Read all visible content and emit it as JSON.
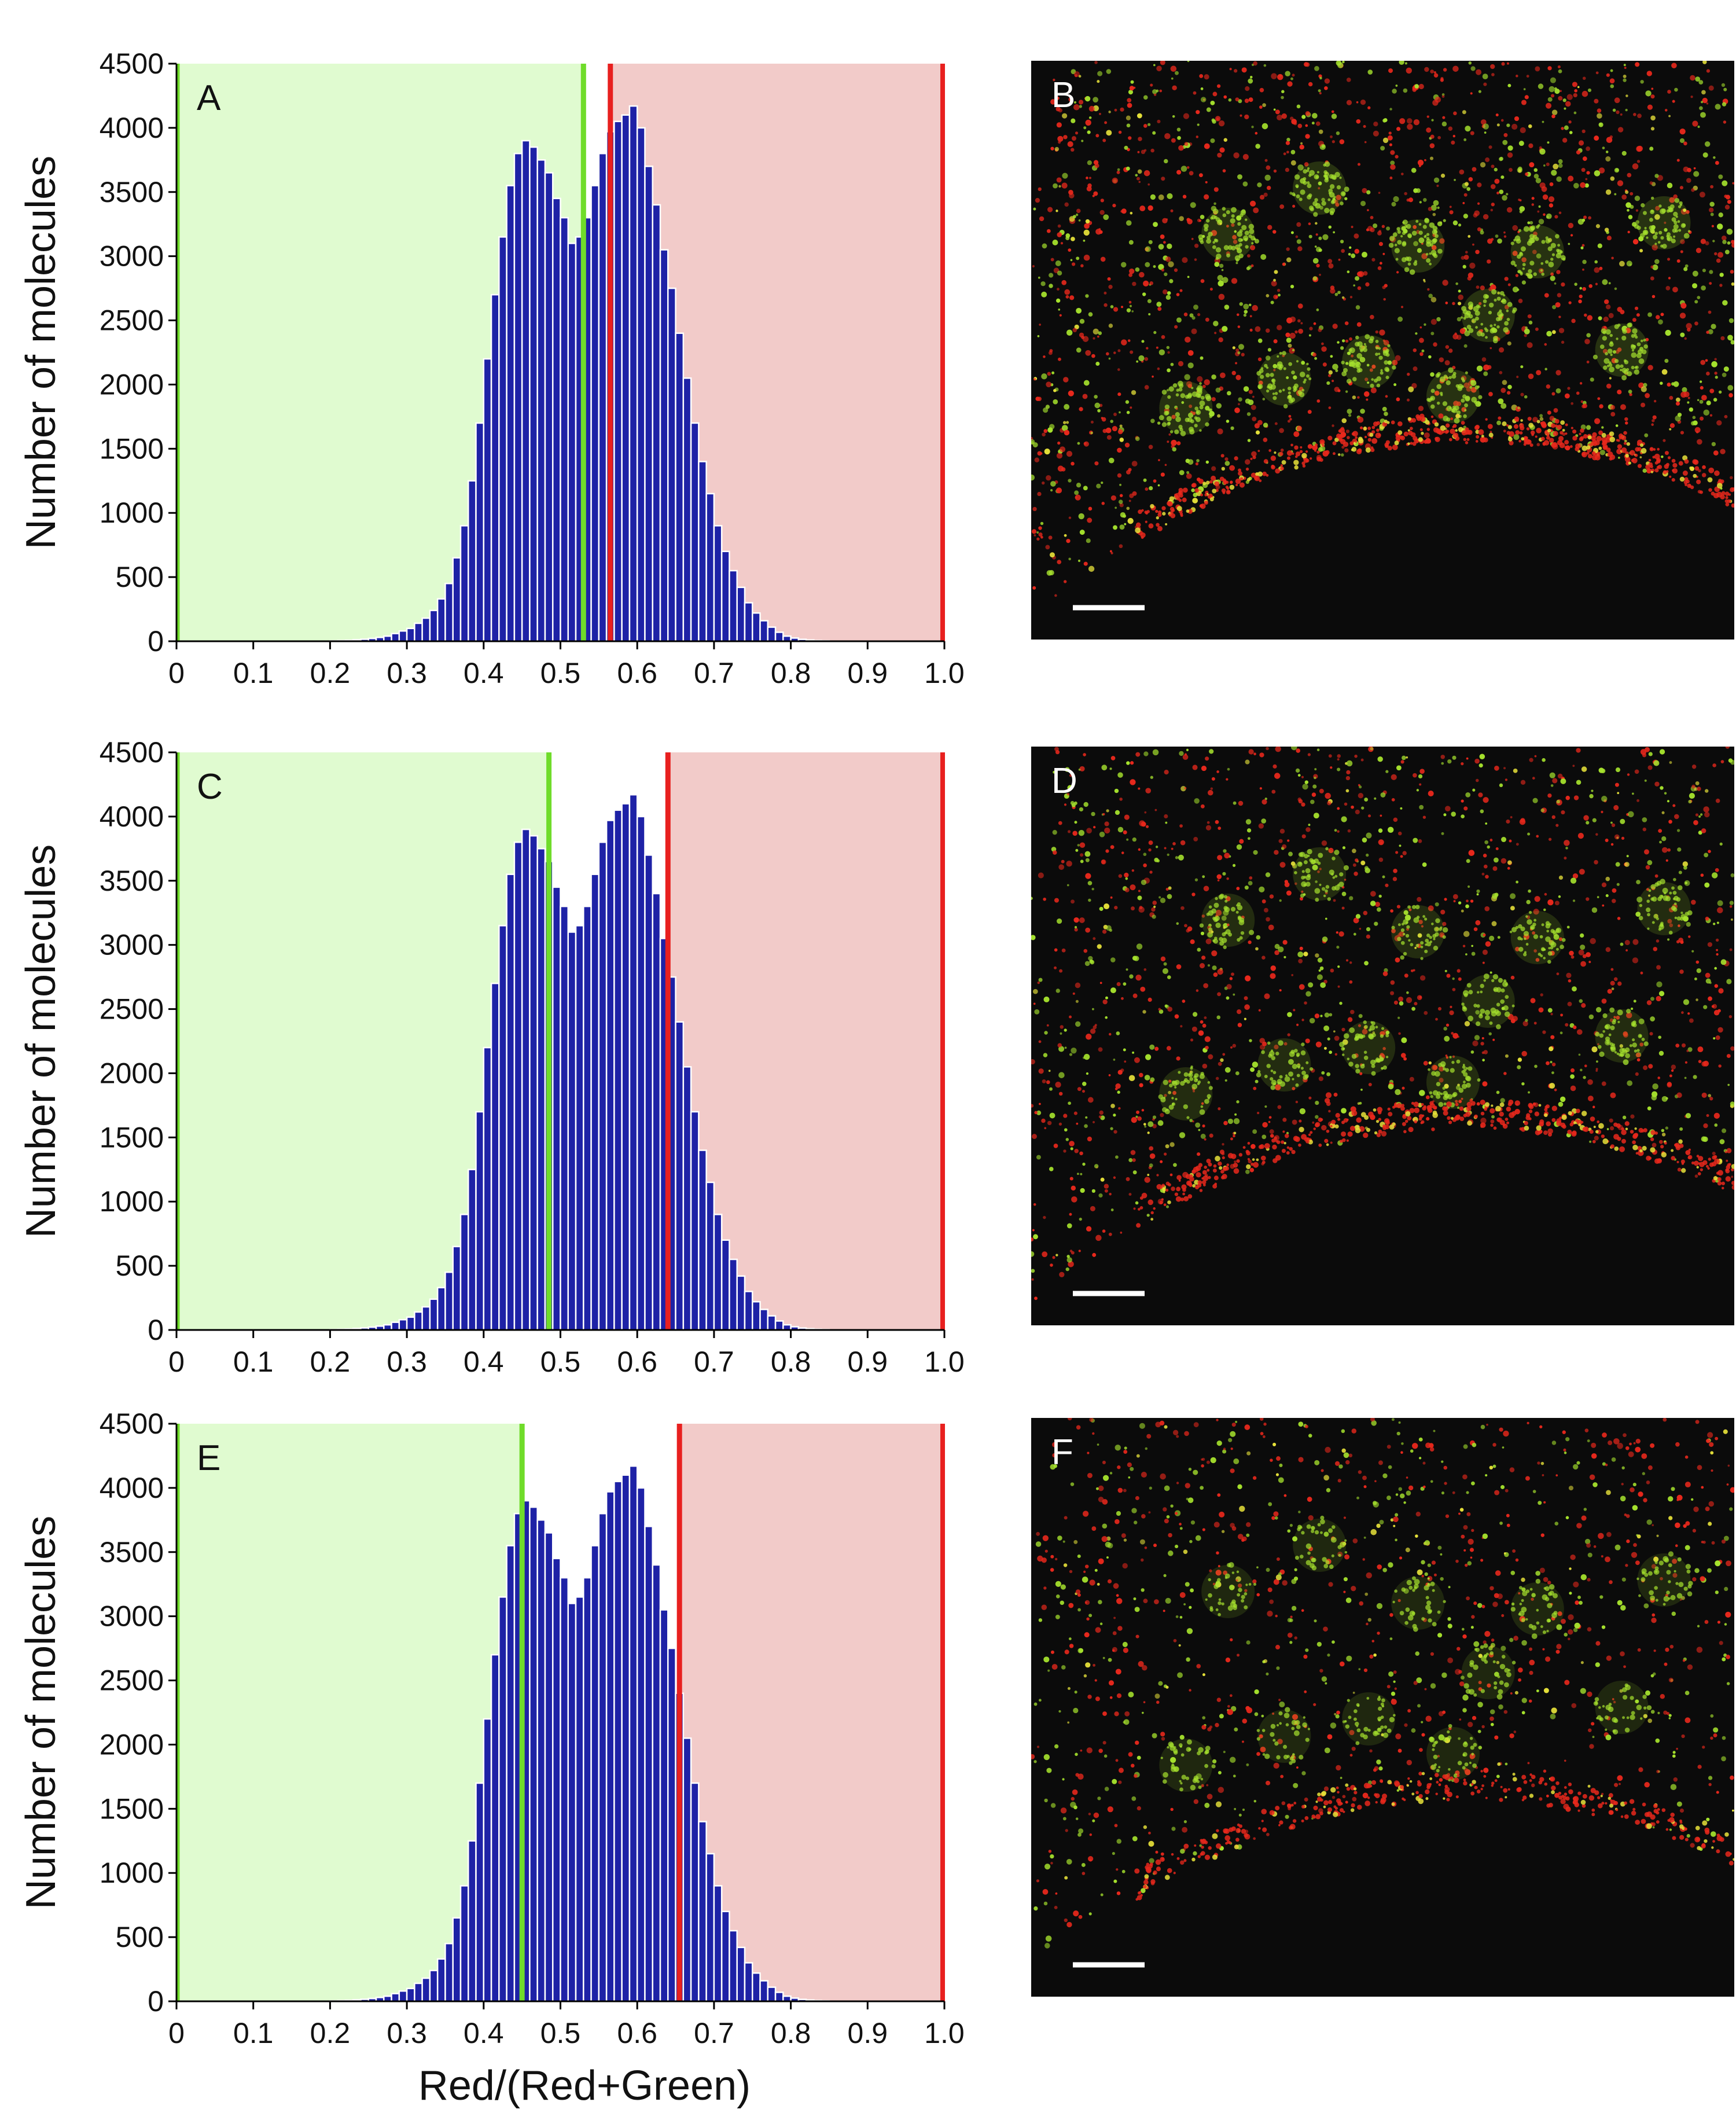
{
  "figure": {
    "shared_xlabel": "Red/(Red+Green)",
    "ylabel": "Number of molecules",
    "colors": {
      "bar": "#1e22a6",
      "bar_edge": "#ffffff",
      "green_region": "#e0fbd0",
      "red_region": "#f2cbc9",
      "green_line": "#6fdc2a",
      "red_line": "#e8201f",
      "micrograph_bg": "#0b0b0b",
      "scale_bar": "#ffffff",
      "red_dot": "#e8281c",
      "green_dot": "#a6e22d",
      "yellow_dot": "#e7e23a"
    }
  },
  "chart_data": [
    {
      "type": "bar",
      "panel": "A",
      "ylabel": "Number of molecules",
      "xlabel": "",
      "xlim": [
        0,
        1.0
      ],
      "ylim": [
        0,
        4500
      ],
      "xticks": [
        "0",
        "0.1",
        "0.2",
        "0.3",
        "0.4",
        "0.5",
        "0.6",
        "0.7",
        "0.8",
        "0.9",
        "1.0"
      ],
      "yticks": [
        "0",
        "500",
        "1000",
        "1500",
        "2000",
        "2500",
        "3000",
        "3500",
        "4000",
        "4500"
      ],
      "green_threshold": 0.53,
      "red_threshold": 0.565,
      "green_region": [
        0,
        0.53
      ],
      "red_region": [
        0.565,
        1.0
      ],
      "bin_width": 0.01,
      "bin_start": 0.2,
      "values": [
        4,
        6,
        8,
        12,
        16,
        22,
        30,
        40,
        60,
        80,
        100,
        140,
        180,
        240,
        330,
        450,
        650,
        900,
        1250,
        1700,
        2200,
        2700,
        3150,
        3550,
        3800,
        3900,
        3850,
        3750,
        3650,
        3450,
        3300,
        3100,
        3150,
        3300,
        3550,
        3800,
        3970,
        4050,
        4100,
        4170,
        4000,
        3700,
        3400,
        3050,
        2750,
        2400,
        2050,
        1700,
        1400,
        1150,
        900,
        700,
        550,
        420,
        300,
        220,
        160,
        110,
        70,
        40,
        25,
        15,
        10,
        6,
        4
      ]
    },
    {
      "type": "bar",
      "panel": "C",
      "ylabel": "Number of molecules",
      "xlabel": "",
      "xlim": [
        0,
        1.0
      ],
      "ylim": [
        0,
        4500
      ],
      "xticks": [
        "0",
        "0.1",
        "0.2",
        "0.3",
        "0.4",
        "0.5",
        "0.6",
        "0.7",
        "0.8",
        "0.9",
        "1.0"
      ],
      "yticks": [
        "0",
        "500",
        "1000",
        "1500",
        "2000",
        "2500",
        "3000",
        "3500",
        "4000",
        "4500"
      ],
      "green_threshold": 0.485,
      "red_threshold": 0.64,
      "green_region": [
        0,
        0.485
      ],
      "red_region": [
        0.64,
        1.0
      ],
      "bin_width": 0.01,
      "bin_start": 0.2,
      "values": [
        4,
        6,
        8,
        12,
        16,
        22,
        30,
        40,
        60,
        80,
        100,
        140,
        180,
        240,
        330,
        450,
        650,
        900,
        1250,
        1700,
        2200,
        2700,
        3150,
        3550,
        3800,
        3900,
        3850,
        3750,
        3650,
        3450,
        3300,
        3100,
        3150,
        3300,
        3550,
        3800,
        3970,
        4050,
        4100,
        4170,
        4000,
        3700,
        3400,
        3050,
        2750,
        2400,
        2050,
        1700,
        1400,
        1150,
        900,
        700,
        550,
        420,
        300,
        220,
        160,
        110,
        70,
        40,
        25,
        15,
        10,
        6,
        4
      ]
    },
    {
      "type": "bar",
      "panel": "E",
      "ylabel": "Number of molecules",
      "xlabel": "Red/(Red+Green)",
      "xlim": [
        0,
        1.0
      ],
      "ylim": [
        0,
        4500
      ],
      "xticks": [
        "0",
        "0.1",
        "0.2",
        "0.3",
        "0.4",
        "0.5",
        "0.6",
        "0.7",
        "0.8",
        "0.9",
        "1.0"
      ],
      "yticks": [
        "0",
        "500",
        "1000",
        "1500",
        "2000",
        "2500",
        "3000",
        "3500",
        "4000",
        "4500"
      ],
      "green_threshold": 0.45,
      "red_threshold": 0.655,
      "green_region": [
        0,
        0.45
      ],
      "red_region": [
        0.655,
        1.0
      ],
      "bin_width": 0.01,
      "bin_start": 0.2,
      "values": [
        4,
        6,
        8,
        12,
        16,
        22,
        30,
        40,
        60,
        80,
        100,
        140,
        180,
        240,
        330,
        450,
        650,
        900,
        1250,
        1700,
        2200,
        2700,
        3150,
        3550,
        3800,
        3900,
        3850,
        3750,
        3650,
        3450,
        3300,
        3100,
        3150,
        3300,
        3550,
        3800,
        3970,
        4050,
        4100,
        4170,
        4000,
        3700,
        3400,
        3050,
        2750,
        2400,
        2050,
        1700,
        1400,
        1150,
        900,
        700,
        550,
        420,
        300,
        220,
        160,
        110,
        70,
        40,
        25,
        15,
        10,
        6,
        4
      ]
    }
  ],
  "micrographs": [
    {
      "panel": "B",
      "seed": 11,
      "density": 1.0
    },
    {
      "panel": "D",
      "seed": 23,
      "density": 0.8
    },
    {
      "panel": "F",
      "seed": 37,
      "density": 0.6
    }
  ]
}
